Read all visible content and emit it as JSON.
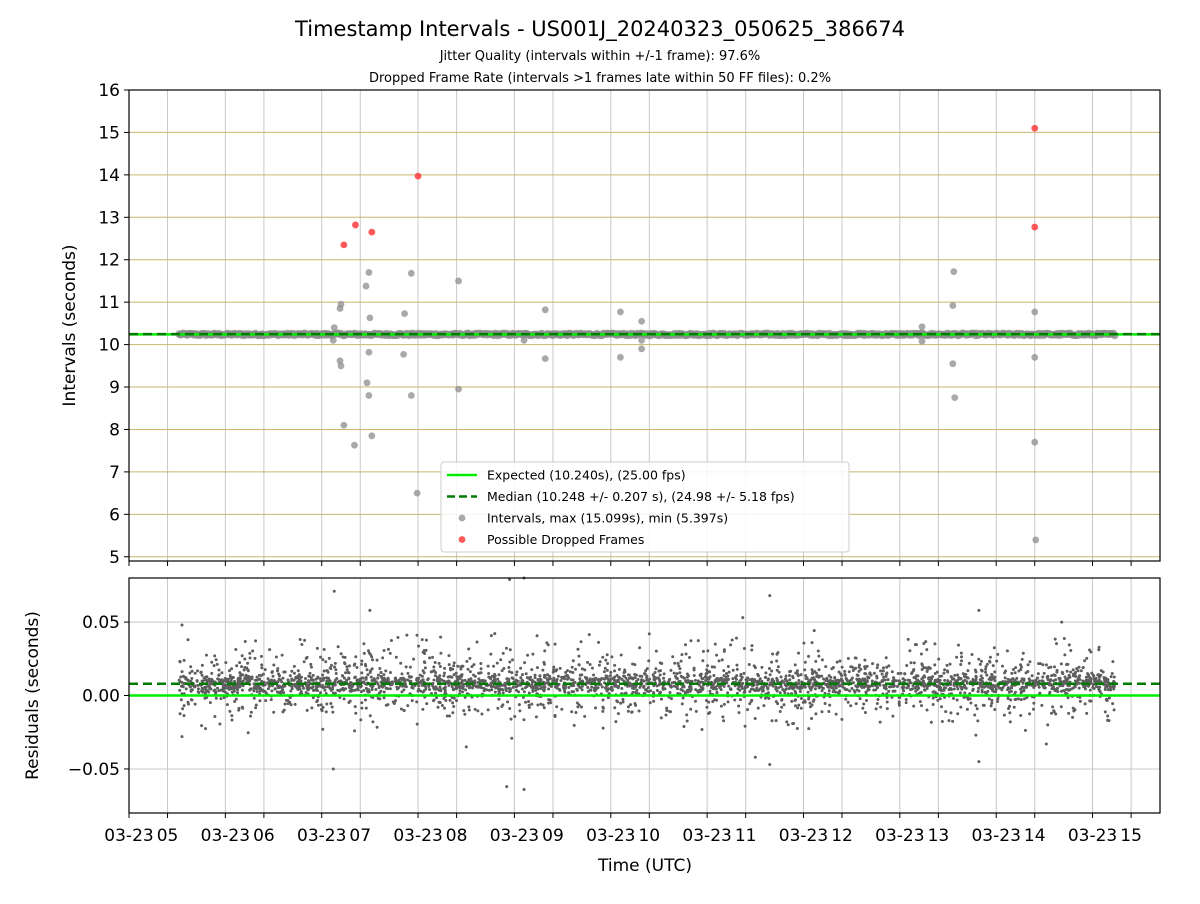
{
  "figure": {
    "title": "Timestamp Intervals - US001J_20240323_050625_386674",
    "subtitle1": "Jitter Quality (intervals within +/-1 frame): 97.6%",
    "subtitle2": "Dropped Frame Rate (intervals >1 frames late within 50 FF files): 0.2%",
    "xlabel": "Time (UTC)"
  },
  "colors": {
    "expected": "#00ee00",
    "median": "#007a00",
    "intervals": "#8c8c8c",
    "dropped": "#ff3b3b",
    "hgrid_top": "#c8b66e",
    "grid": "#c8c8c8",
    "residuals": "#5e5e5e"
  },
  "chart_data": [
    {
      "type": "scatter",
      "name": "intervals-panel",
      "ylabel": "Intervals (seconds)",
      "ylim": [
        4.9,
        16
      ],
      "yticks": [
        5,
        6,
        7,
        8,
        9,
        10,
        11,
        12,
        13,
        14,
        15,
        16
      ],
      "xlim_hours": [
        4.6,
        15.3
      ],
      "x_unit": "hour of day (UTC), 2024-03-23",
      "expected": 10.24,
      "median": 10.248,
      "legend_position": "lower-center",
      "legend": {
        "expected": "Expected (10.240s), (25.00 fps)",
        "median": "Median (10.248 +/- 0.207 s), (24.98 +/- 5.18 fps)",
        "intervals": "Intervals, max (15.099s), min (5.397s)",
        "dropped": "Possible Dropped Frames"
      },
      "baseline_range_hours": [
        5.12,
        14.83
      ],
      "intervals_points": [
        [
          6.73,
          10.4
        ],
        [
          6.72,
          10.1
        ],
        [
          6.8,
          10.95
        ],
        [
          6.79,
          10.85
        ],
        [
          6.79,
          9.62
        ],
        [
          6.8,
          9.5
        ],
        [
          6.83,
          8.1
        ],
        [
          6.94,
          7.63
        ],
        [
          7.06,
          11.38
        ],
        [
          7.09,
          11.7
        ],
        [
          7.1,
          10.63
        ],
        [
          7.09,
          9.82
        ],
        [
          7.07,
          9.1
        ],
        [
          7.09,
          8.8
        ],
        [
          7.12,
          7.85
        ],
        [
          7.46,
          10.73
        ],
        [
          7.45,
          9.77
        ],
        [
          7.53,
          11.68
        ],
        [
          7.53,
          8.8
        ],
        [
          7.59,
          6.5
        ],
        [
          8.02,
          11.5
        ],
        [
          8.02,
          8.95
        ],
        [
          8.7,
          10.1
        ],
        [
          8.92,
          10.82
        ],
        [
          8.92,
          9.67
        ],
        [
          9.7,
          10.77
        ],
        [
          9.7,
          9.7
        ],
        [
          9.92,
          10.55
        ],
        [
          9.92,
          9.9
        ],
        [
          9.92,
          10.1
        ],
        [
          12.83,
          10.42
        ],
        [
          12.83,
          10.08
        ],
        [
          13.16,
          11.72
        ],
        [
          13.15,
          10.92
        ],
        [
          13.15,
          9.55
        ],
        [
          13.17,
          8.75
        ],
        [
          14.0,
          10.77
        ],
        [
          14.0,
          9.7
        ],
        [
          14.0,
          7.7
        ],
        [
          14.01,
          5.397
        ]
      ],
      "dropped_points": [
        [
          6.83,
          12.35
        ],
        [
          6.95,
          12.82
        ],
        [
          7.12,
          12.65
        ],
        [
          7.6,
          13.97
        ],
        [
          14.0,
          15.099
        ],
        [
          14.0,
          12.77
        ]
      ]
    },
    {
      "type": "scatter",
      "name": "residuals-panel",
      "ylabel": "Residuals (seconds)",
      "ylim": [
        -0.08,
        0.08
      ],
      "yticks": [
        -0.05,
        0.0,
        0.05
      ],
      "ytick_labels": [
        "−0.05",
        "0.00",
        "0.05"
      ],
      "xlim_hours": [
        4.6,
        15.3
      ],
      "expected_residual": 0.0,
      "median_residual": 0.008,
      "range_hours": [
        5.12,
        14.83
      ],
      "point_count": 3400,
      "center": 0.008,
      "spread_sd": 0.012,
      "outliers": [
        [
          6.73,
          0.071
        ],
        [
          7.1,
          0.058
        ],
        [
          8.55,
          0.079
        ],
        [
          8.7,
          0.08
        ],
        [
          10.97,
          0.053
        ],
        [
          11.25,
          0.068
        ],
        [
          13.42,
          0.058
        ],
        [
          6.72,
          -0.05
        ],
        [
          8.52,
          -0.062
        ],
        [
          8.7,
          -0.064
        ],
        [
          11.1,
          -0.042
        ],
        [
          11.25,
          -0.047
        ],
        [
          13.42,
          -0.045
        ],
        [
          5.15,
          0.048
        ],
        [
          5.15,
          -0.028
        ],
        [
          14.28,
          0.05
        ],
        [
          14.12,
          -0.033
        ],
        [
          10.0,
          0.042
        ],
        [
          8.1,
          -0.035
        ]
      ]
    }
  ],
  "xaxis": {
    "ticks_hours": [
      4.6,
      5,
      5.6,
      6,
      6.6,
      7,
      7.6,
      8,
      8.6,
      9,
      9.6,
      10,
      10.6,
      11,
      11.6,
      12,
      12.6,
      13,
      13.6,
      14,
      14.6,
      15
    ],
    "tick_labels": [
      "03-23",
      "05",
      "03-23",
      "06",
      "03-23",
      "07",
      "03-23",
      "08",
      "03-23",
      "09",
      "03-23",
      "10",
      "03-23",
      "11",
      "03-23",
      "12",
      "03-23",
      "13",
      "03-23",
      "14",
      "03-23",
      "15"
    ]
  }
}
